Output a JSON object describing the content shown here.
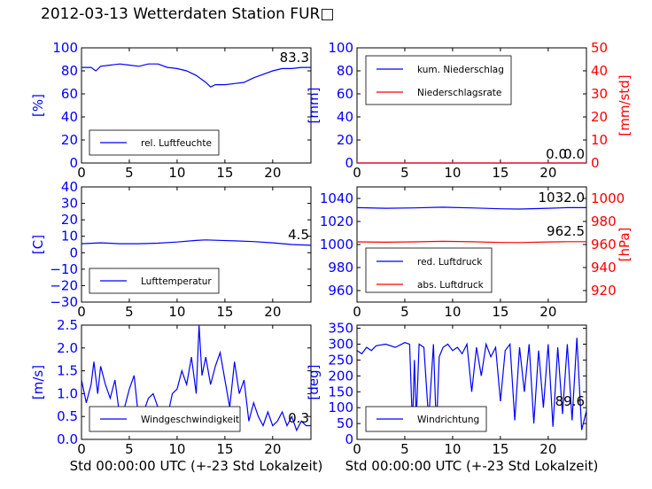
{
  "title": "2012-03-13 Wetterdaten Station FUR□",
  "colors": {
    "primary": "#0000ff",
    "secondary": "#ff0000",
    "text": "#000000"
  },
  "chart_data": [
    {
      "id": "humidity",
      "type": "line",
      "ylabel": "[%]",
      "ylim": [
        0,
        100
      ],
      "yticks": [
        0,
        20,
        40,
        60,
        80,
        100
      ],
      "xlim": [
        0,
        24
      ],
      "xticks": [
        0,
        5,
        10,
        15,
        20
      ],
      "legend": [
        "rel. Luftfeuchte"
      ],
      "legend_position": "lower-left",
      "value_label": "83.3",
      "series": [
        {
          "name": "rel. Luftfeuchte",
          "color": "#0000ff",
          "x": [
            0,
            1,
            1.5,
            2,
            3,
            4,
            5,
            6,
            7,
            8,
            9,
            10,
            11,
            12,
            13,
            13.5,
            14,
            15,
            16,
            17,
            18,
            19,
            20,
            21,
            22,
            23,
            24
          ],
          "y": [
            83,
            83,
            80,
            84,
            85,
            86,
            85,
            84,
            86,
            86,
            83,
            82,
            80,
            76,
            70,
            66,
            68,
            68,
            69,
            70,
            74,
            77,
            80,
            82,
            82,
            83,
            83
          ]
        }
      ]
    },
    {
      "id": "precipitation",
      "type": "line",
      "ylabel": "[mm]",
      "y2label": "[mm/std]",
      "ylim": [
        0,
        100
      ],
      "yticks": [
        0,
        20,
        40,
        60,
        80,
        100
      ],
      "y2lim": [
        0,
        50
      ],
      "y2ticks": [
        0,
        10,
        20,
        30,
        40,
        50
      ],
      "xlim": [
        0,
        24
      ],
      "xticks": [
        0,
        5,
        10,
        15,
        20
      ],
      "legend": [
        "kum. Niederschlag",
        "Niederschlagsrate"
      ],
      "legend_position": "upper-left",
      "value_labels": [
        "0.0",
        "0.0"
      ],
      "series": [
        {
          "name": "kum. Niederschlag",
          "color": "#0000ff",
          "x": [
            0,
            24
          ],
          "y": [
            0,
            0
          ]
        },
        {
          "name": "Niederschlagsrate",
          "color": "#ff0000",
          "axis": "right",
          "x": [
            0,
            24
          ],
          "y": [
            0,
            0
          ]
        }
      ]
    },
    {
      "id": "temperature",
      "type": "line",
      "ylabel": "[C]",
      "ylim": [
        -30,
        40
      ],
      "yticks": [
        -30,
        -20,
        -10,
        0,
        10,
        20,
        30,
        40
      ],
      "xlim": [
        0,
        24
      ],
      "xticks": [
        0,
        5,
        10,
        15,
        20
      ],
      "legend": [
        "Lufttemperatur"
      ],
      "legend_position": "lower-left",
      "value_label": "4.5",
      "series": [
        {
          "name": "Lufttemperatur",
          "color": "#0000ff",
          "x": [
            0,
            2,
            4,
            6,
            8,
            10,
            12,
            13,
            14,
            16,
            18,
            20,
            22,
            24
          ],
          "y": [
            5.5,
            6,
            5.5,
            5.5,
            5.8,
            6.5,
            7.5,
            7.8,
            7.6,
            7.2,
            6.8,
            6,
            5,
            4.5
          ]
        }
      ]
    },
    {
      "id": "pressure",
      "type": "line",
      "ylabel": "",
      "y2label": "[hPa]",
      "ylim": [
        950,
        1050
      ],
      "yticks": [
        960,
        980,
        1000,
        1020,
        1040
      ],
      "y2lim": [
        910,
        1010
      ],
      "y2ticks": [
        920,
        940,
        960,
        980,
        1000
      ],
      "xlim": [
        0,
        24
      ],
      "xticks": [
        0,
        5,
        10,
        15,
        20
      ],
      "legend": [
        "red. Luftdruck",
        "abs. Luftdruck"
      ],
      "legend_position": "lower-left",
      "value_labels": [
        "1032.0",
        "962.5"
      ],
      "series": [
        {
          "name": "red. Luftdruck",
          "color": "#0000ff",
          "x": [
            0,
            3,
            6,
            9,
            12,
            15,
            17,
            20,
            22,
            24
          ],
          "y": [
            1032,
            1031.5,
            1031.8,
            1032.4,
            1031.8,
            1031,
            1030.8,
            1031.5,
            1032,
            1032
          ]
        },
        {
          "name": "abs. Luftdruck",
          "color": "#ff0000",
          "axis": "right",
          "x": [
            0,
            3,
            6,
            9,
            12,
            15,
            17,
            20,
            22,
            24
          ],
          "y": [
            962.3,
            962,
            962.3,
            962.8,
            962.4,
            961.8,
            961.7,
            962.2,
            962.5,
            962.5
          ]
        }
      ]
    },
    {
      "id": "windspeed",
      "type": "line",
      "ylabel": "[m/s]",
      "xlabel": "Std 00:00:00 UTC (+-23 Std Lokalzeit)",
      "ylim": [
        0,
        2.5
      ],
      "yticks": [
        0,
        0.5,
        1,
        1.5,
        2,
        2.5
      ],
      "ytick_labels": [
        "0.0",
        "0.5",
        "1.0",
        "1.5",
        "2.0",
        "2.5"
      ],
      "xlim": [
        0,
        24
      ],
      "xticks": [
        0,
        5,
        10,
        15,
        20
      ],
      "legend": [
        "Windgeschwindigkeit"
      ],
      "legend_position": "lower-left",
      "value_label": "0.3",
      "series": [
        {
          "name": "Windgeschwindigkeit",
          "color": "#0000ff",
          "x": [
            0,
            0.5,
            1,
            1.3,
            1.7,
            2,
            2.5,
            3,
            3.5,
            4,
            4.5,
            5,
            5.5,
            6,
            6.5,
            7,
            7.5,
            8,
            8.5,
            9,
            9.5,
            10,
            10.5,
            11,
            11.5,
            12,
            12.3,
            12.6,
            13,
            13.5,
            14,
            14.5,
            15,
            15.5,
            16,
            16.5,
            17,
            17.5,
            18,
            18.5,
            19,
            19.5,
            20,
            20.5,
            21,
            21.5,
            22,
            22.5,
            23,
            23.5,
            24
          ],
          "y": [
            1.3,
            0.8,
            1.2,
            1.7,
            1.0,
            1.6,
            1.2,
            0.9,
            1.3,
            0.5,
            0.7,
            1.1,
            1.4,
            0.4,
            0.6,
            0.9,
            1.0,
            0.7,
            0.4,
            0.5,
            1.0,
            1.1,
            1.5,
            1.2,
            1.8,
            1.0,
            2.5,
            1.4,
            1.8,
            1.2,
            1.6,
            1.9,
            1.3,
            0.7,
            1.7,
            1.0,
            1.3,
            0.4,
            0.8,
            0.5,
            0.3,
            0.6,
            0.3,
            0.4,
            0.6,
            0.3,
            0.5,
            0.2,
            0.4,
            0.3,
            0.3
          ]
        }
      ]
    },
    {
      "id": "winddir",
      "type": "line",
      "ylabel": "[deg]",
      "xlabel": "Std 00:00:00 UTC (+-23 Std Lokalzeit)",
      "ylim": [
        0,
        360
      ],
      "yticks": [
        0,
        50,
        100,
        150,
        200,
        250,
        300,
        350
      ],
      "xlim": [
        0,
        24
      ],
      "xticks": [
        0,
        5,
        10,
        15,
        20
      ],
      "legend": [
        "Windrichtung"
      ],
      "legend_position": "lower-left",
      "value_label": "89.6",
      "series": [
        {
          "name": "Windrichtung",
          "color": "#0000ff",
          "x": [
            0,
            0.5,
            1,
            1.5,
            2,
            3,
            4,
            5,
            5.5,
            5.8,
            6,
            6.2,
            6.5,
            7,
            7.5,
            8,
            8.3,
            8.6,
            9,
            9.5,
            10,
            10.5,
            11,
            11.5,
            12,
            12.5,
            13,
            13.5,
            14,
            14.5,
            15,
            15.5,
            16,
            16.5,
            17,
            17.5,
            18,
            18.5,
            19,
            19.5,
            20,
            20.5,
            21,
            21.5,
            22,
            22.5,
            23,
            23.5,
            24
          ],
          "y": [
            280,
            270,
            290,
            280,
            295,
            300,
            290,
            305,
            300,
            40,
            250,
            60,
            300,
            290,
            60,
            300,
            30,
            260,
            290,
            300,
            280,
            290,
            270,
            300,
            150,
            290,
            200,
            300,
            260,
            290,
            120,
            280,
            300,
            60,
            290,
            150,
            300,
            50,
            280,
            100,
            300,
            40,
            290,
            80,
            300,
            60,
            320,
            30,
            90
          ]
        }
      ]
    }
  ]
}
